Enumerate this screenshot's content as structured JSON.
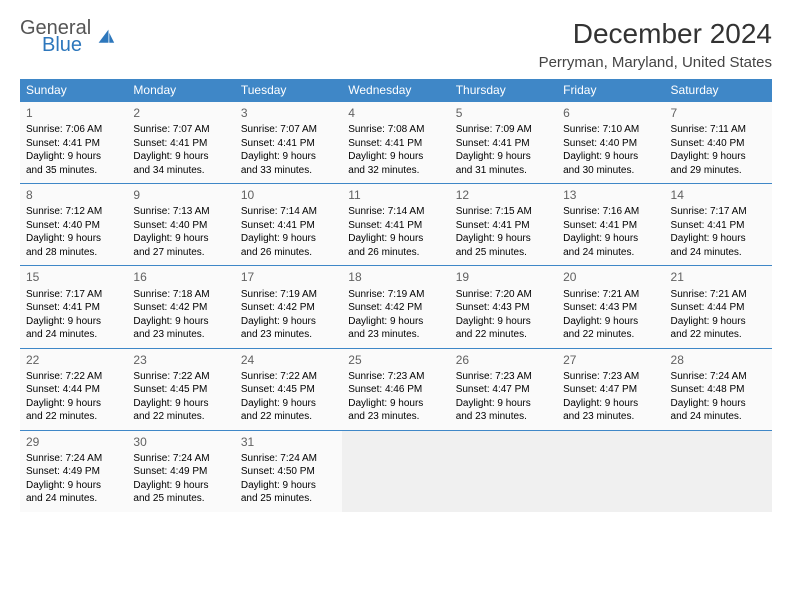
{
  "brand": {
    "top": "General",
    "bottom": "Blue"
  },
  "title": "December 2024",
  "location": "Perryman, Maryland, United States",
  "colors": {
    "header_blue": "#3f87c7",
    "logo_blue": "#2d77bc",
    "text_dark": "#333333",
    "day_num": "#616161",
    "cell_bg": "#fafafa",
    "empty_bg": "#f0f0f0",
    "row_border": "#3f87c7"
  },
  "dow": [
    "Sunday",
    "Monday",
    "Tuesday",
    "Wednesday",
    "Thursday",
    "Friday",
    "Saturday"
  ],
  "weeks": [
    [
      {
        "n": "1",
        "sr": "Sunrise: 7:06 AM",
        "ss": "Sunset: 4:41 PM",
        "dl1": "Daylight: 9 hours",
        "dl2": "and 35 minutes."
      },
      {
        "n": "2",
        "sr": "Sunrise: 7:07 AM",
        "ss": "Sunset: 4:41 PM",
        "dl1": "Daylight: 9 hours",
        "dl2": "and 34 minutes."
      },
      {
        "n": "3",
        "sr": "Sunrise: 7:07 AM",
        "ss": "Sunset: 4:41 PM",
        "dl1": "Daylight: 9 hours",
        "dl2": "and 33 minutes."
      },
      {
        "n": "4",
        "sr": "Sunrise: 7:08 AM",
        "ss": "Sunset: 4:41 PM",
        "dl1": "Daylight: 9 hours",
        "dl2": "and 32 minutes."
      },
      {
        "n": "5",
        "sr": "Sunrise: 7:09 AM",
        "ss": "Sunset: 4:41 PM",
        "dl1": "Daylight: 9 hours",
        "dl2": "and 31 minutes."
      },
      {
        "n": "6",
        "sr": "Sunrise: 7:10 AM",
        "ss": "Sunset: 4:40 PM",
        "dl1": "Daylight: 9 hours",
        "dl2": "and 30 minutes."
      },
      {
        "n": "7",
        "sr": "Sunrise: 7:11 AM",
        "ss": "Sunset: 4:40 PM",
        "dl1": "Daylight: 9 hours",
        "dl2": "and 29 minutes."
      }
    ],
    [
      {
        "n": "8",
        "sr": "Sunrise: 7:12 AM",
        "ss": "Sunset: 4:40 PM",
        "dl1": "Daylight: 9 hours",
        "dl2": "and 28 minutes."
      },
      {
        "n": "9",
        "sr": "Sunrise: 7:13 AM",
        "ss": "Sunset: 4:40 PM",
        "dl1": "Daylight: 9 hours",
        "dl2": "and 27 minutes."
      },
      {
        "n": "10",
        "sr": "Sunrise: 7:14 AM",
        "ss": "Sunset: 4:41 PM",
        "dl1": "Daylight: 9 hours",
        "dl2": "and 26 minutes."
      },
      {
        "n": "11",
        "sr": "Sunrise: 7:14 AM",
        "ss": "Sunset: 4:41 PM",
        "dl1": "Daylight: 9 hours",
        "dl2": "and 26 minutes."
      },
      {
        "n": "12",
        "sr": "Sunrise: 7:15 AM",
        "ss": "Sunset: 4:41 PM",
        "dl1": "Daylight: 9 hours",
        "dl2": "and 25 minutes."
      },
      {
        "n": "13",
        "sr": "Sunrise: 7:16 AM",
        "ss": "Sunset: 4:41 PM",
        "dl1": "Daylight: 9 hours",
        "dl2": "and 24 minutes."
      },
      {
        "n": "14",
        "sr": "Sunrise: 7:17 AM",
        "ss": "Sunset: 4:41 PM",
        "dl1": "Daylight: 9 hours",
        "dl2": "and 24 minutes."
      }
    ],
    [
      {
        "n": "15",
        "sr": "Sunrise: 7:17 AM",
        "ss": "Sunset: 4:41 PM",
        "dl1": "Daylight: 9 hours",
        "dl2": "and 24 minutes."
      },
      {
        "n": "16",
        "sr": "Sunrise: 7:18 AM",
        "ss": "Sunset: 4:42 PM",
        "dl1": "Daylight: 9 hours",
        "dl2": "and 23 minutes."
      },
      {
        "n": "17",
        "sr": "Sunrise: 7:19 AM",
        "ss": "Sunset: 4:42 PM",
        "dl1": "Daylight: 9 hours",
        "dl2": "and 23 minutes."
      },
      {
        "n": "18",
        "sr": "Sunrise: 7:19 AM",
        "ss": "Sunset: 4:42 PM",
        "dl1": "Daylight: 9 hours",
        "dl2": "and 23 minutes."
      },
      {
        "n": "19",
        "sr": "Sunrise: 7:20 AM",
        "ss": "Sunset: 4:43 PM",
        "dl1": "Daylight: 9 hours",
        "dl2": "and 22 minutes."
      },
      {
        "n": "20",
        "sr": "Sunrise: 7:21 AM",
        "ss": "Sunset: 4:43 PM",
        "dl1": "Daylight: 9 hours",
        "dl2": "and 22 minutes."
      },
      {
        "n": "21",
        "sr": "Sunrise: 7:21 AM",
        "ss": "Sunset: 4:44 PM",
        "dl1": "Daylight: 9 hours",
        "dl2": "and 22 minutes."
      }
    ],
    [
      {
        "n": "22",
        "sr": "Sunrise: 7:22 AM",
        "ss": "Sunset: 4:44 PM",
        "dl1": "Daylight: 9 hours",
        "dl2": "and 22 minutes."
      },
      {
        "n": "23",
        "sr": "Sunrise: 7:22 AM",
        "ss": "Sunset: 4:45 PM",
        "dl1": "Daylight: 9 hours",
        "dl2": "and 22 minutes."
      },
      {
        "n": "24",
        "sr": "Sunrise: 7:22 AM",
        "ss": "Sunset: 4:45 PM",
        "dl1": "Daylight: 9 hours",
        "dl2": "and 22 minutes."
      },
      {
        "n": "25",
        "sr": "Sunrise: 7:23 AM",
        "ss": "Sunset: 4:46 PM",
        "dl1": "Daylight: 9 hours",
        "dl2": "and 23 minutes."
      },
      {
        "n": "26",
        "sr": "Sunrise: 7:23 AM",
        "ss": "Sunset: 4:47 PM",
        "dl1": "Daylight: 9 hours",
        "dl2": "and 23 minutes."
      },
      {
        "n": "27",
        "sr": "Sunrise: 7:23 AM",
        "ss": "Sunset: 4:47 PM",
        "dl1": "Daylight: 9 hours",
        "dl2": "and 23 minutes."
      },
      {
        "n": "28",
        "sr": "Sunrise: 7:24 AM",
        "ss": "Sunset: 4:48 PM",
        "dl1": "Daylight: 9 hours",
        "dl2": "and 24 minutes."
      }
    ],
    [
      {
        "n": "29",
        "sr": "Sunrise: 7:24 AM",
        "ss": "Sunset: 4:49 PM",
        "dl1": "Daylight: 9 hours",
        "dl2": "and 24 minutes."
      },
      {
        "n": "30",
        "sr": "Sunrise: 7:24 AM",
        "ss": "Sunset: 4:49 PM",
        "dl1": "Daylight: 9 hours",
        "dl2": "and 25 minutes."
      },
      {
        "n": "31",
        "sr": "Sunrise: 7:24 AM",
        "ss": "Sunset: 4:50 PM",
        "dl1": "Daylight: 9 hours",
        "dl2": "and 25 minutes."
      },
      null,
      null,
      null,
      null
    ]
  ]
}
